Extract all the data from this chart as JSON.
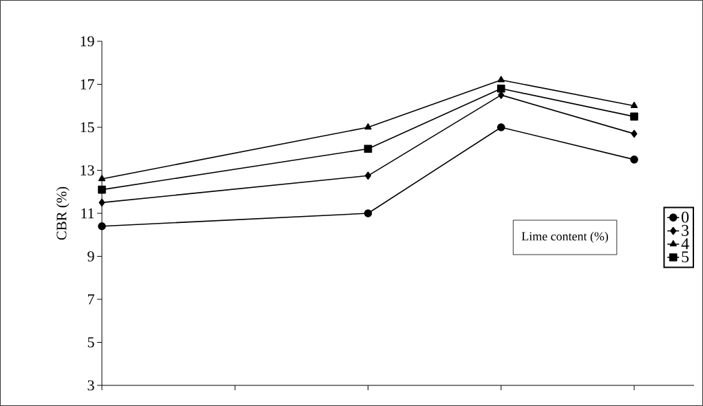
{
  "chart_data": {
    "type": "line",
    "ylabel": "CBR (%)",
    "legend_title": "Lime content (%)",
    "categories": [
      null,
      null,
      null,
      null,
      null
    ],
    "series": [
      {
        "name": "0",
        "color": "#000000",
        "marker": "circle",
        "values": [
          10.4,
          null,
          11.0,
          15.0,
          13.5
        ]
      },
      {
        "name": "3",
        "color": "#000000",
        "marker": "diamond",
        "values": [
          11.5,
          null,
          12.75,
          16.5,
          14.7
        ]
      },
      {
        "name": "4",
        "color": "#000000",
        "marker": "triangle",
        "values": [
          12.6,
          null,
          15.0,
          17.2,
          16.0
        ]
      },
      {
        "name": "5",
        "color": "#000000",
        "marker": "square",
        "values": [
          12.1,
          null,
          14.0,
          16.8,
          15.5
        ]
      }
    ],
    "ylim": [
      3,
      19
    ],
    "yticks": [
      3,
      5,
      7,
      9,
      11,
      13,
      15,
      17,
      19
    ],
    "grid": false,
    "legend": "right",
    "line_style": "solid",
    "tick_labels": "y"
  }
}
